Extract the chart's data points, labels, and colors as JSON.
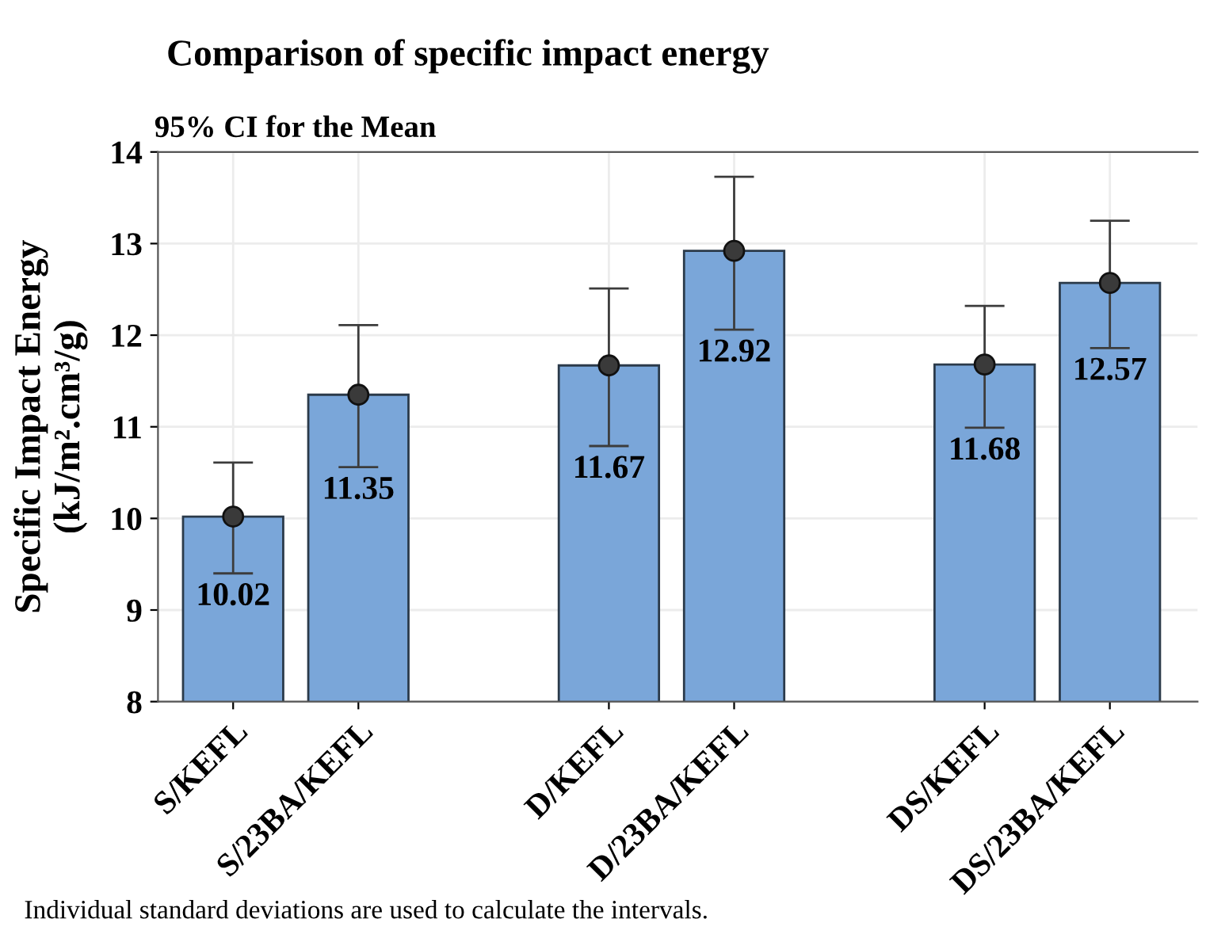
{
  "chart_data": {
    "type": "bar",
    "title": "Comparison of specific impact energy",
    "subtitle": "95% CI for the Mean",
    "ylabel": "Specific Impact Energy\n(kJ/m².cm³/g)",
    "categories": [
      "S/KEFL",
      "S/23BA/KEFL",
      null,
      "D/KEFL",
      "D/23BA/KEFL",
      null,
      "DS/KEFL",
      "DS/23BA/KEFL"
    ],
    "series": [
      {
        "color": "#7aa6d9",
        "values": [
          10.02,
          11.35,
          null,
          11.67,
          12.92,
          null,
          11.68,
          12.57
        ],
        "value_labels": [
          "10.02",
          "11.35",
          null,
          "11.67",
          "12.92",
          null,
          "11.68",
          "12.57"
        ]
      },
      {
        "type": "scatter",
        "color": "#3a3a3a",
        "marker": "circle",
        "values": [
          10.02,
          11.35,
          null,
          11.67,
          12.92,
          null,
          11.68,
          12.57
        ],
        "errors": [
          [
            9.4,
            10.61
          ],
          [
            10.56,
            12.11
          ],
          null,
          [
            10.79,
            12.51
          ],
          [
            12.06,
            13.73
          ],
          null,
          [
            10.99,
            12.32
          ],
          [
            11.86,
            13.25
          ]
        ]
      }
    ],
    "ylim": [
      8,
      14
    ],
    "yticks": [
      8,
      9,
      10,
      11,
      12,
      13,
      14
    ],
    "grid": true,
    "annotations": [
      "Individual standard deviations are used to calculate the intervals."
    ]
  }
}
